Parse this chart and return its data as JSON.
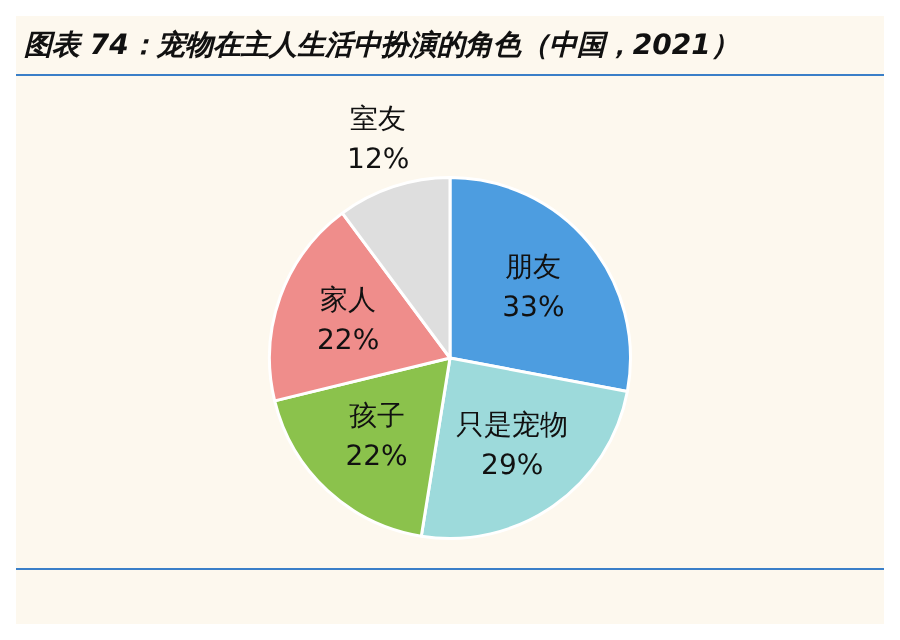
{
  "chart_data": {
    "type": "pie",
    "title": "图表 74：宠物在主人生活中扮演的角色（中国，2021）",
    "categories": [
      "朋友",
      "只是宠物",
      "孩子",
      "家人",
      "室友"
    ],
    "values": [
      33,
      29,
      22,
      22,
      12
    ],
    "value_labels": [
      "33%",
      "29%",
      "22%",
      "22%",
      "12%"
    ],
    "colors": [
      "#4d9de0",
      "#9ddadb",
      "#8bc24c",
      "#ef8d8b",
      "#dedede"
    ]
  }
}
